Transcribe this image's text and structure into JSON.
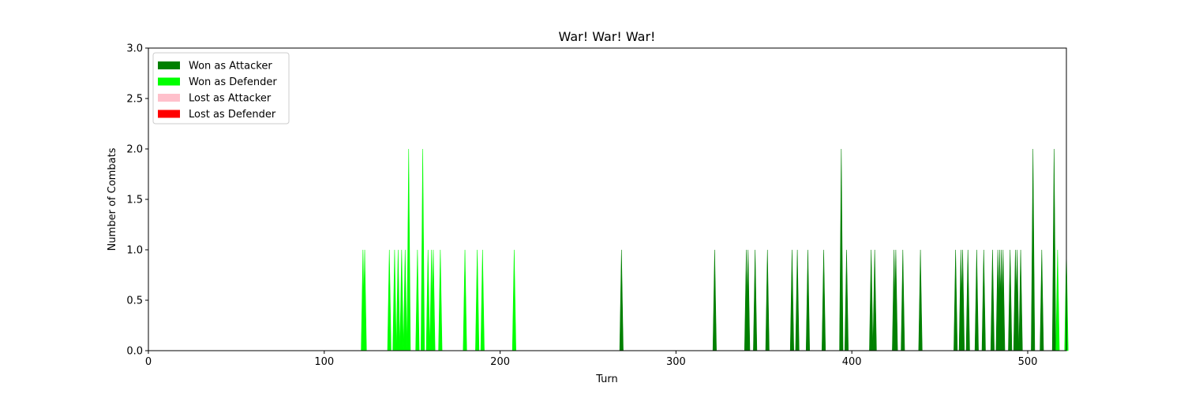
{
  "chart_data": {
    "type": "area",
    "title": "War! War! War!",
    "xlabel": "Turn",
    "ylabel": "Number of Combats",
    "xlim": [
      0,
      522
    ],
    "ylim": [
      0,
      3.0
    ],
    "x_ticks": [
      0,
      100,
      200,
      300,
      400,
      500
    ],
    "y_ticks": [
      0.0,
      0.5,
      1.0,
      1.5,
      2.0,
      2.5,
      3.0
    ],
    "x_tick_labels": [
      "0",
      "100",
      "200",
      "300",
      "400",
      "500"
    ],
    "y_tick_labels": [
      "0.0",
      "0.5",
      "1.0",
      "1.5",
      "2.0",
      "2.5",
      "3.0"
    ],
    "legend_position": "top-left",
    "stacked": true,
    "series": [
      {
        "name": "Won as Attacker",
        "color": "#008000",
        "points": [
          [
            269,
            1
          ],
          [
            322,
            1
          ],
          [
            340,
            1
          ],
          [
            341,
            1
          ],
          [
            345,
            1
          ],
          [
            352,
            1
          ],
          [
            366,
            1
          ],
          [
            369,
            1
          ],
          [
            375,
            1
          ],
          [
            384,
            1
          ],
          [
            394,
            2
          ],
          [
            397,
            1
          ],
          [
            411,
            1
          ],
          [
            413,
            1
          ],
          [
            424,
            1
          ],
          [
            425,
            1
          ],
          [
            429,
            1
          ],
          [
            439,
            1
          ],
          [
            459,
            1
          ],
          [
            462,
            1
          ],
          [
            463,
            1
          ],
          [
            466,
            1
          ],
          [
            471,
            1
          ],
          [
            475,
            1
          ],
          [
            480,
            1
          ],
          [
            483,
            1
          ],
          [
            484,
            1
          ],
          [
            485,
            1
          ],
          [
            486,
            1
          ],
          [
            490,
            1
          ],
          [
            493,
            1
          ],
          [
            494,
            1
          ],
          [
            496,
            1
          ],
          [
            503,
            2
          ],
          [
            508,
            1
          ],
          [
            515,
            2
          ]
        ]
      },
      {
        "name": "Won as Defender",
        "color": "#00ff00",
        "points": [
          [
            122,
            1
          ],
          [
            123,
            1
          ],
          [
            137,
            1
          ],
          [
            140,
            1
          ],
          [
            142,
            1
          ],
          [
            144,
            1
          ],
          [
            146,
            1
          ],
          [
            148,
            2
          ],
          [
            153,
            1
          ],
          [
            156,
            2
          ],
          [
            159,
            1
          ],
          [
            161,
            1
          ],
          [
            162,
            1
          ],
          [
            166,
            1
          ],
          [
            180,
            1
          ],
          [
            187,
            1
          ],
          [
            190,
            1
          ],
          [
            208,
            1
          ],
          [
            517,
            1
          ],
          [
            522,
            1
          ]
        ]
      },
      {
        "name": "Lost as Attacker",
        "color": "#ffc0cb",
        "points": []
      },
      {
        "name": "Lost as Defender",
        "color": "#ff0000",
        "points": []
      }
    ]
  }
}
